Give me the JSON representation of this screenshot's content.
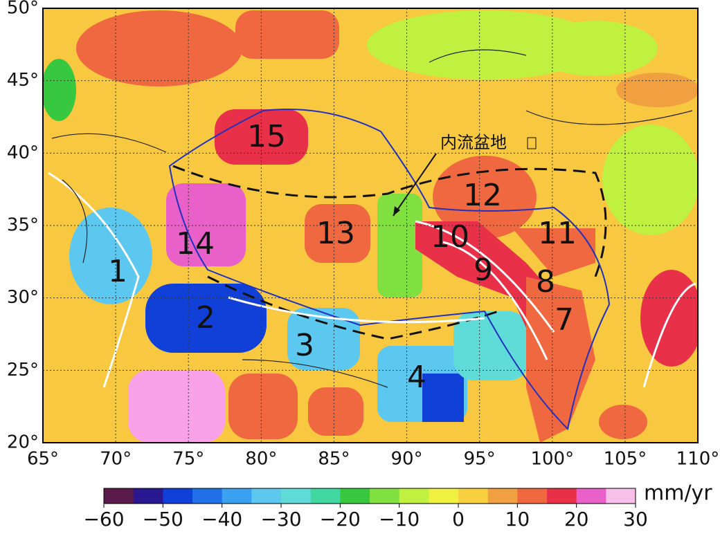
{
  "map": {
    "lonlim": [
      65,
      110
    ],
    "latlim": [
      20,
      50
    ],
    "xticks": [
      {
        "value": 65,
        "label": "65°"
      },
      {
        "value": 70,
        "label": "70°"
      },
      {
        "value": 75,
        "label": "75°"
      },
      {
        "value": 80,
        "label": "80°"
      },
      {
        "value": 85,
        "label": "85°"
      },
      {
        "value": 90,
        "label": "90°"
      },
      {
        "value": 95,
        "label": "95°"
      },
      {
        "value": 100,
        "label": "100°"
      },
      {
        "value": 105,
        "label": "105°"
      },
      {
        "value": 110,
        "label": "110°"
      }
    ],
    "yticks": [
      {
        "value": 20,
        "label": "20°"
      },
      {
        "value": 25,
        "label": "25°"
      },
      {
        "value": 30,
        "label": "30°"
      },
      {
        "value": 35,
        "label": "35°"
      },
      {
        "value": 40,
        "label": "40°"
      },
      {
        "value": 45,
        "label": "45°"
      },
      {
        "value": 50,
        "label": "50°"
      }
    ],
    "regions": [
      "1",
      "2",
      "3",
      "4",
      "7",
      "8",
      "9",
      "10",
      "11",
      "12",
      "13",
      "14",
      "15"
    ],
    "annotation": "内流盆地"
  },
  "colorbar": {
    "lim": [
      -60,
      30
    ],
    "ticks": [
      {
        "value": -60,
        "label": "−60"
      },
      {
        "value": -50,
        "label": "−50"
      },
      {
        "value": -40,
        "label": "−40"
      },
      {
        "value": -30,
        "label": "−30"
      },
      {
        "value": -20,
        "label": "−20"
      },
      {
        "value": -10,
        "label": "−10"
      },
      0,
      10,
      20,
      30
    ],
    "colors": [
      "#5a1a4a",
      "#2a1890",
      "#1040d8",
      "#2070e8",
      "#3aa0f0",
      "#5cc8f0",
      "#60dcd8",
      "#40d8a0",
      "#38c840",
      "#80e040",
      "#c0f040",
      "#f0f040",
      "#f8d040",
      "#f0a040",
      "#f06840",
      "#e83048",
      "#e860c8",
      "#f8c0e8"
    ],
    "unit": "mm/yr"
  }
}
